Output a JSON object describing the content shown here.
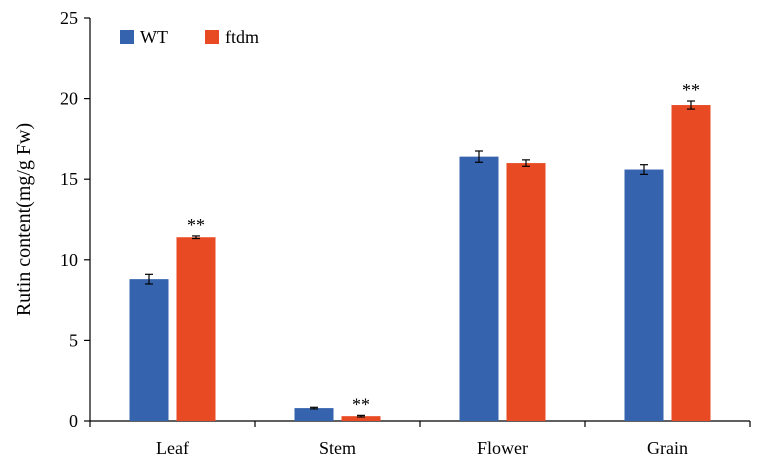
{
  "chart_data": {
    "type": "bar",
    "title": "",
    "xlabel": "",
    "ylabel": "Rutin content(mg/g Fw)",
    "ylim": [
      0,
      25
    ],
    "yticks": [
      0,
      5,
      10,
      15,
      20,
      25
    ],
    "categories": [
      "Leaf",
      "Stem",
      "Flower",
      "Grain"
    ],
    "series": [
      {
        "name": "WT",
        "color": "#3563AE",
        "values": [
          8.8,
          0.8,
          16.4,
          15.6
        ],
        "errors": [
          0.3,
          0.05,
          0.35,
          0.3
        ]
      },
      {
        "name": "ftdm",
        "color": "#E84A23",
        "values": [
          11.4,
          0.3,
          16.0,
          19.6
        ],
        "errors": [
          0.08,
          0.05,
          0.2,
          0.25
        ],
        "significance": [
          "**",
          "**",
          "",
          "**"
        ]
      }
    ],
    "legend": "top-left",
    "grid": false
  }
}
